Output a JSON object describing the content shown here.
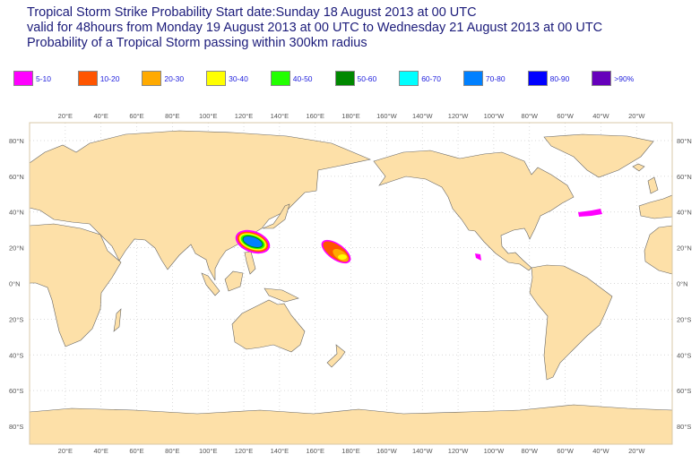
{
  "title": {
    "line1": "Tropical Storm Strike Probability Start date:Sunday 18 August 2013 at 00 UTC",
    "line2": "valid for 48hours from Monday 19 August 2013 at 00 UTC to  Wednesday 21 August 2013 at 00 UTC",
    "line3": "Probability of a Tropical Storm passing within 300km radius"
  },
  "legend": [
    {
      "label": "5-10",
      "color": "#ff00ff"
    },
    {
      "label": "10-20",
      "color": "#ff5500"
    },
    {
      "label": "20-30",
      "color": "#ffaa00"
    },
    {
      "label": "30-40",
      "color": "#ffff00"
    },
    {
      "label": "40-50",
      "color": "#22ff00"
    },
    {
      "label": "50-60",
      "color": "#008800"
    },
    {
      "label": "60-70",
      "color": "#00ffff"
    },
    {
      "label": "70-80",
      "color": "#0080ff"
    },
    {
      "label": "80-90",
      "color": "#0000ff"
    },
    {
      "label": ">90%",
      "color": "#6600bb"
    }
  ],
  "lon_labels": [
    "20°E",
    "40°E",
    "60°E",
    "80°E",
    "100°E",
    "120°E",
    "140°E",
    "160°E",
    "180°E",
    "160°W",
    "140°W",
    "120°W",
    "100°W",
    "80°W",
    "60°W",
    "40°W",
    "20°W"
  ],
  "lat_labels": [
    "80°N",
    "60°N",
    "40°N",
    "20°N",
    "0°N",
    "20°S",
    "40°S",
    "60°S",
    "80°S"
  ],
  "colors": {
    "land": "#fde0a8",
    "coast": "#666666",
    "grid": "#cccccc",
    "frame": "#d8c8a8"
  }
}
